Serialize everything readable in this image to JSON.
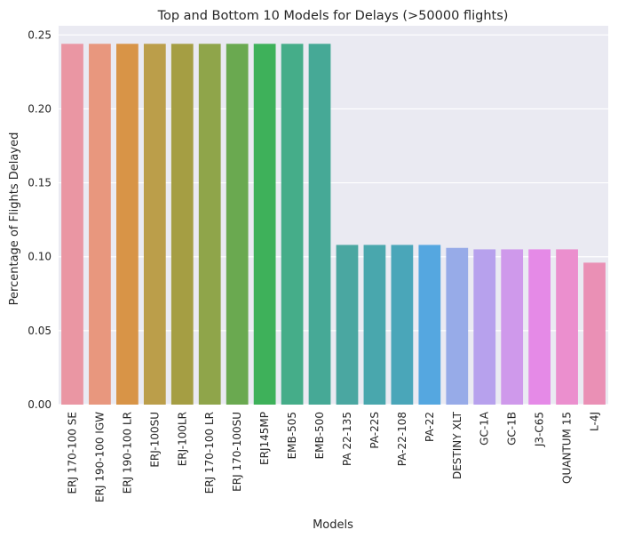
{
  "chart_data": {
    "type": "bar",
    "title": "Top and Bottom 10 Models for Delays (>50000 flights)",
    "xlabel": "Models",
    "ylabel": "Percentage of Flights Delayed",
    "categories": [
      "ERJ 170-100 SE",
      "ERJ 190-100 IGW",
      "ERJ 190-100 LR",
      "ERJ-100SU",
      "ERJ-100LR",
      "ERJ 170-100 LR",
      "ERJ 170-100SU",
      "ERJ145MP",
      "EMB-505",
      "EMB-500",
      "PA 22-135",
      "PA-22S",
      "PA-22-108",
      "PA-22",
      "DESTINY XLT",
      "GC-1A",
      "GC-1B",
      "J3-C65",
      "QUANTUM 15",
      "L-4J"
    ],
    "values": [
      0.244,
      0.244,
      0.244,
      0.244,
      0.244,
      0.244,
      0.244,
      0.244,
      0.244,
      0.244,
      0.108,
      0.108,
      0.108,
      0.108,
      0.106,
      0.105,
      0.105,
      0.105,
      0.105,
      0.096
    ],
    "colors": [
      "#ea96a3",
      "#e8977e",
      "#d89447",
      "#bb9e4a",
      "#a59e43",
      "#8fa54a",
      "#6aa950",
      "#3eb15a",
      "#45ad89",
      "#46a996",
      "#4aa7a1",
      "#49a7ad",
      "#4aa6b9",
      "#55a7e0",
      "#97abe8",
      "#b7a1ed",
      "#cf99eb",
      "#e58ae7",
      "#eb8fce",
      "#ea90b5"
    ],
    "yticks": [
      "0.00",
      "0.05",
      "0.10",
      "0.15",
      "0.20",
      "0.25"
    ],
    "ylim": [
      0,
      0.2562
    ],
    "grid": true,
    "background": "#eaeaf2"
  }
}
